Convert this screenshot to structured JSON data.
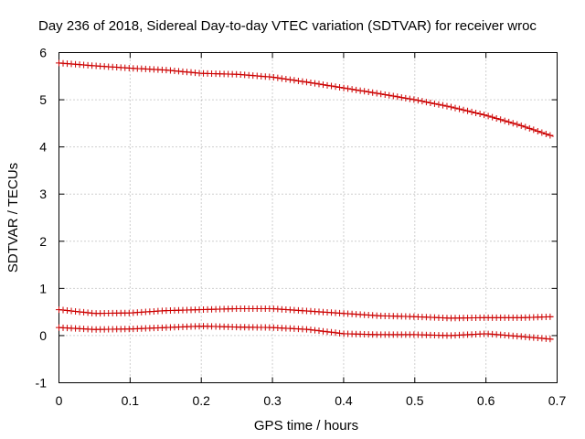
{
  "chart_data": {
    "type": "scatter",
    "title": "Day 236 of 2018, Sidereal Day-to-day VTEC variation (SDTVAR) for receiver wroc",
    "xlabel": "GPS time / hours",
    "ylabel": "SDTVAR / TECUs",
    "xlim": [
      0,
      0.7
    ],
    "ylim": [
      -1,
      6
    ],
    "xticks": [
      0,
      0.1,
      0.2,
      0.3,
      0.4,
      0.5,
      0.6,
      0.7
    ],
    "xtick_labels": [
      "0",
      "0.1",
      "0.2",
      "0.3",
      "0.4",
      "0.5",
      "0.6",
      "0.7"
    ],
    "yticks": [
      -1,
      0,
      1,
      2,
      3,
      4,
      5,
      6
    ],
    "ytick_labels": [
      "-1",
      "0",
      "1",
      "2",
      "3",
      "4",
      "5",
      "6"
    ],
    "grid": true,
    "marker": "plus",
    "color": "#cc0000",
    "series": [
      {
        "name": "upper",
        "x": [
          0,
          0.05,
          0.1,
          0.15,
          0.2,
          0.25,
          0.3,
          0.35,
          0.4,
          0.45,
          0.5,
          0.55,
          0.6,
          0.65,
          0.695
        ],
        "y": [
          5.78,
          5.72,
          5.67,
          5.63,
          5.56,
          5.54,
          5.48,
          5.37,
          5.25,
          5.13,
          5.0,
          4.85,
          4.67,
          4.45,
          4.22
        ]
      },
      {
        "name": "middle",
        "x": [
          0,
          0.05,
          0.1,
          0.15,
          0.2,
          0.25,
          0.3,
          0.35,
          0.4,
          0.45,
          0.5,
          0.55,
          0.6,
          0.65,
          0.695
        ],
        "y": [
          0.55,
          0.47,
          0.48,
          0.53,
          0.55,
          0.57,
          0.57,
          0.52,
          0.47,
          0.42,
          0.4,
          0.37,
          0.38,
          0.38,
          0.4
        ]
      },
      {
        "name": "lower",
        "x": [
          0,
          0.05,
          0.1,
          0.15,
          0.2,
          0.25,
          0.3,
          0.35,
          0.4,
          0.45,
          0.5,
          0.55,
          0.6,
          0.65,
          0.695
        ],
        "y": [
          0.17,
          0.13,
          0.14,
          0.17,
          0.2,
          0.18,
          0.17,
          0.13,
          0.04,
          0.02,
          0.02,
          0.0,
          0.04,
          -0.02,
          -0.08
        ]
      }
    ]
  }
}
